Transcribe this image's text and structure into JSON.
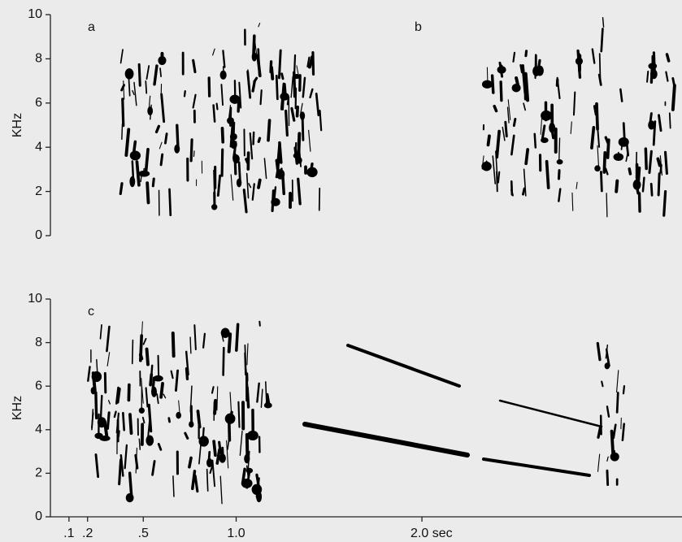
{
  "chart_data": [
    {
      "type": "spectrogram",
      "panel_labels": [
        "a",
        "b"
      ],
      "ylabel": "KHz",
      "ylim": [
        0,
        10
      ],
      "yticks": [
        0,
        2,
        4,
        6,
        8,
        10
      ]
    },
    {
      "type": "spectrogram",
      "panel_labels": [
        "c"
      ],
      "ylabel": "KHz",
      "ylim": [
        0,
        10
      ],
      "yticks": [
        0,
        2,
        4,
        6,
        8,
        10
      ],
      "xlim": [
        0,
        3.4
      ],
      "xticks": [
        {
          "value": 0.1,
          "label": ".1"
        },
        {
          "value": 0.2,
          "label": ".2"
        },
        {
          "value": 0.5,
          "label": ".5"
        },
        {
          "value": 1.0,
          "label": "1.0"
        },
        {
          "value": 2.0,
          "label": "2.0 sec"
        }
      ]
    }
  ]
}
